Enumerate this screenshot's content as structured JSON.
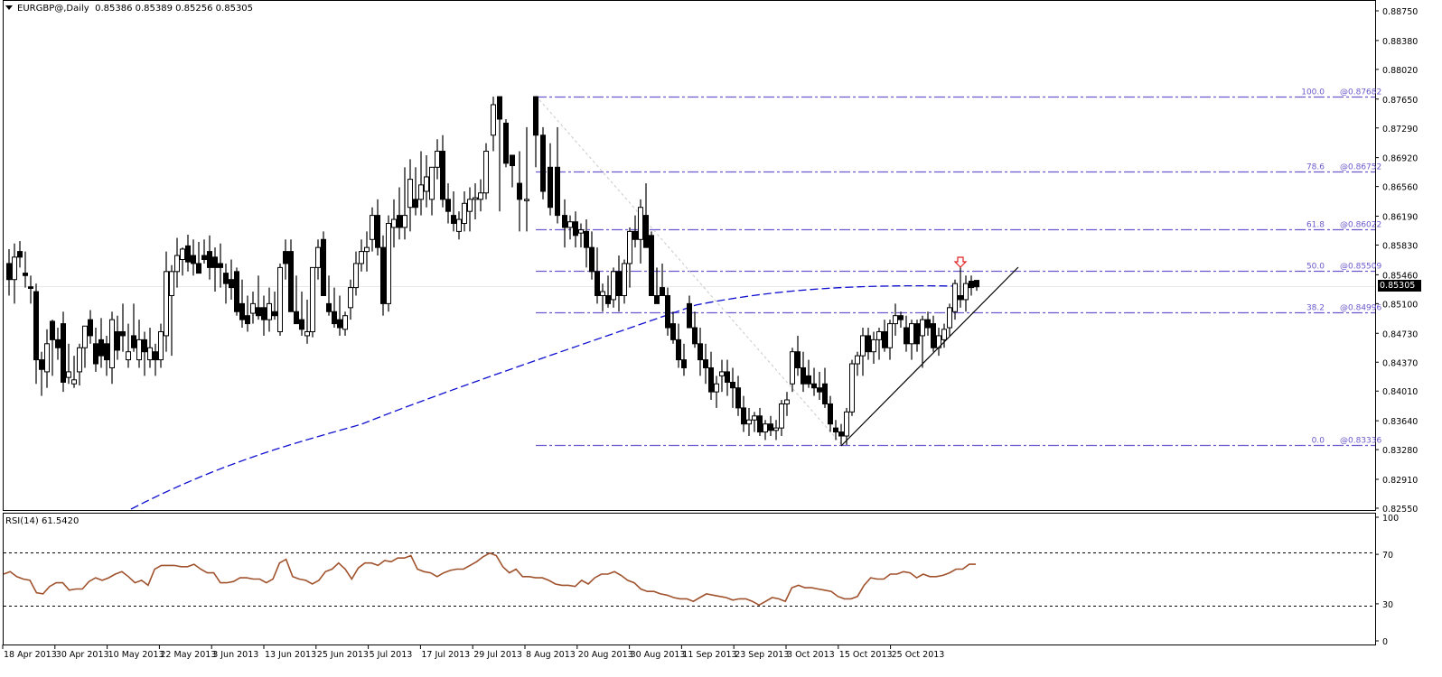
{
  "header": {
    "symbol": "EURGBP@,Daily",
    "ohlc": "0.85386 0.85389 0.85256 0.85305",
    "menu_icon": "triangle-down-icon"
  },
  "rsi_panel": {
    "label": "RSI(14) 61.5420",
    "levels": [
      "100",
      "70",
      "30",
      "0"
    ]
  },
  "current_price_tag": "0.85305",
  "colors": {
    "background": "#ffffff",
    "frame": "#000000",
    "candle_bull_fill": "#ffffff",
    "candle_bear_fill": "#000000",
    "fib_lines": "#6a5acd",
    "moving_average": "#1010d0",
    "rsi_line": "#a0522d",
    "trendline": "#000000",
    "diagonal_fib_anchor": "#c8c8c8",
    "arrow_marker": "#e02020"
  },
  "chart_data": [
    {
      "type": "candlestick",
      "title": "EURGBP@,Daily",
      "subtitle": "O 0.85386 H 0.85389 L 0.85256 C 0.85305",
      "xlabel": "",
      "ylabel": "",
      "y_ticks": [
        "0.88750",
        "0.88380",
        "0.88020",
        "0.87650",
        "0.87290",
        "0.86920",
        "0.86560",
        "0.86190",
        "0.85830",
        "0.85460",
        "0.85100",
        "0.84730",
        "0.84370",
        "0.84010",
        "0.83640",
        "0.83280",
        "0.82910",
        "0.82550"
      ],
      "ylim": [
        0.8255,
        0.8875
      ],
      "x_ticks": [
        "18 Apr 2013",
        "30 Apr 2013",
        "10 May 2013",
        "22 May 2013",
        "3 Jun 2013",
        "13 Jun 2013",
        "25 Jun 2013",
        "5 Jul 2013",
        "17 Jul 2013",
        "29 Jul 2013",
        "8 Aug 2013",
        "20 Aug 2013",
        "30 Aug 2013",
        "11 Sep 2013",
        "23 Sep 2013",
        "3 Oct 2013",
        "15 Oct 2013",
        "25 Oct 2013"
      ],
      "last_close": 0.85305,
      "fibonacci_retracement": [
        {
          "level": "100.0",
          "price": "@0.87682",
          "value": 0.87682
        },
        {
          "level": "78.6",
          "price": "@0.86752",
          "value": 0.86752
        },
        {
          "level": "61.8",
          "price": "@0.86022",
          "value": 0.86022
        },
        {
          "level": "50.0",
          "price": "@0.85509",
          "value": 0.85509
        },
        {
          "level": "38.2",
          "price": "@0.84996",
          "value": 0.84996
        },
        {
          "level": "0.0",
          "price": "@0.83336",
          "value": 0.83336
        }
      ],
      "overlays": [
        {
          "name": "moving average (dashed blue)",
          "approx_start": 0.8255,
          "approx_end": 0.8532
        },
        {
          "name": "ascending trendline",
          "from": 0.8334,
          "to": 0.8558
        },
        {
          "name": "sell arrow marker",
          "near": 0.8558
        }
      ]
    },
    {
      "type": "line",
      "title": "RSI(14) 61.5420",
      "ylim": [
        0,
        100
      ],
      "levels": [
        70,
        30
      ],
      "y_ticks": [
        "100",
        "70",
        "30",
        "0"
      ],
      "last_value": 61.542,
      "approx_values": [
        54,
        56,
        52,
        50,
        49,
        39,
        38,
        44,
        47,
        47,
        41,
        42,
        42,
        48,
        51,
        49,
        51,
        54,
        56,
        52,
        47,
        49,
        45,
        58,
        61,
        61,
        61,
        60,
        60,
        62,
        58,
        55,
        55,
        47,
        47,
        48,
        51,
        51,
        50,
        50,
        47,
        50,
        63,
        66,
        52,
        50,
        49,
        46,
        49,
        56,
        58,
        63,
        58,
        50,
        59,
        63,
        63,
        61,
        65,
        64,
        67,
        67,
        69,
        58,
        56,
        55,
        52,
        55,
        57,
        58,
        58,
        61,
        64,
        68,
        71,
        69,
        60,
        55,
        58,
        52,
        52,
        51,
        51,
        49,
        46,
        45,
        45,
        44,
        49,
        46,
        51,
        54,
        54,
        56,
        53,
        49,
        47,
        42,
        40,
        40,
        38,
        37,
        35,
        34,
        34,
        32,
        35,
        38,
        37,
        36,
        35,
        33,
        34,
        34,
        32,
        29,
        32,
        35,
        34,
        32,
        43,
        45,
        43,
        43,
        42,
        41,
        40,
        36,
        34,
        34,
        36,
        45,
        51,
        50,
        50,
        54,
        54,
        56,
        55,
        51,
        54,
        52,
        52,
        53,
        55,
        58,
        58,
        62,
        62
      ]
    }
  ]
}
